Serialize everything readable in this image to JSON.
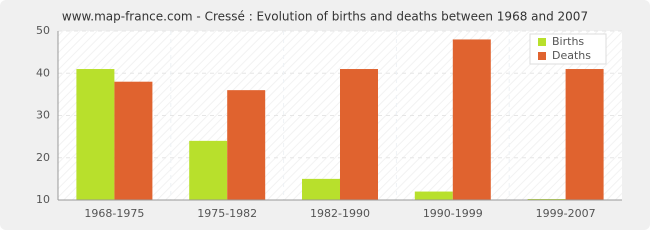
{
  "chart_data": {
    "type": "bar",
    "title": "www.map-france.com - Cressé : Evolution of births and deaths between 1968 and 2007",
    "categories": [
      "1968-1975",
      "1975-1982",
      "1982-1990",
      "1990-1999",
      "1999-2007"
    ],
    "series": [
      {
        "name": "Births",
        "color": "#b8e02c",
        "values": [
          41,
          24,
          15,
          12,
          10
        ]
      },
      {
        "name": "Deaths",
        "color": "#e0632f",
        "values": [
          38,
          36,
          41,
          48,
          41
        ]
      }
    ],
    "ylim": [
      10,
      50
    ],
    "yticks": [
      10,
      20,
      30,
      40,
      50
    ],
    "grid": true,
    "legend": "top-right"
  }
}
